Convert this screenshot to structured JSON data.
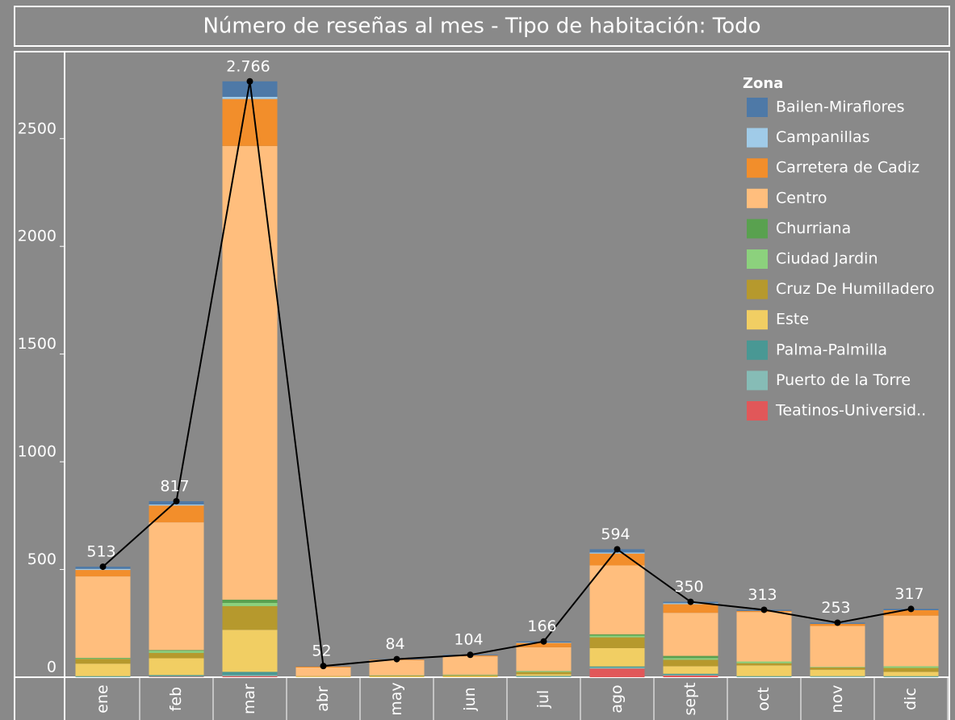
{
  "chart_data": {
    "type": "bar",
    "stacked": true,
    "title": "Número de reseñas al mes - Tipo de habitación: Todo",
    "categories": [
      "ene",
      "feb",
      "mar",
      "abr",
      "may",
      "jun",
      "jul",
      "ago",
      "sept",
      "oct",
      "nov",
      "dic"
    ],
    "legend_title": "Zona",
    "series": [
      {
        "name": "Bailen-Miraflores",
        "color": "#4e79a7",
        "values": [
          10,
          15,
          72,
          2,
          2,
          3,
          5,
          15,
          6,
          5,
          5,
          6
        ]
      },
      {
        "name": "Campanillas",
        "color": "#a0cbe8",
        "values": [
          5,
          5,
          10,
          0,
          0,
          0,
          2,
          5,
          5,
          0,
          0,
          0
        ]
      },
      {
        "name": "Carretera de Cadiz",
        "color": "#f28e2b",
        "values": [
          30,
          78,
          218,
          5,
          3,
          4,
          20,
          55,
          40,
          5,
          10,
          25
        ]
      },
      {
        "name": "Centro",
        "color": "#ffbe7d",
        "values": [
          378,
          593,
          2106,
          40,
          70,
          85,
          110,
          320,
          200,
          230,
          190,
          235
        ]
      },
      {
        "name": "Churriana",
        "color": "#59a14f",
        "values": [
          2,
          3,
          15,
          0,
          0,
          0,
          0,
          6,
          10,
          0,
          0,
          0
        ]
      },
      {
        "name": "Ciudad Jardin",
        "color": "#8cd17d",
        "values": [
          3,
          10,
          15,
          0,
          2,
          3,
          5,
          8,
          8,
          8,
          3,
          8
        ]
      },
      {
        "name": "Cruz De Humilladero",
        "color": "#b6992d",
        "values": [
          22,
          25,
          110,
          2,
          3,
          4,
          10,
          50,
          30,
          10,
          10,
          18
        ]
      },
      {
        "name": "Este",
        "color": "#f1ce63",
        "values": [
          58,
          78,
          195,
          3,
          4,
          5,
          8,
          85,
          35,
          50,
          30,
          20
        ]
      },
      {
        "name": "Palma-Palmilla",
        "color": "#499894",
        "values": [
          3,
          5,
          15,
          0,
          0,
          0,
          3,
          5,
          5,
          3,
          2,
          3
        ]
      },
      {
        "name": "Puerto de la Torre",
        "color": "#86bcb6",
        "values": [
          2,
          3,
          5,
          0,
          0,
          0,
          3,
          5,
          3,
          2,
          3,
          2
        ]
      },
      {
        "name": "Teatinos-Universid..",
        "color": "#e15759",
        "values": [
          0,
          2,
          5,
          0,
          0,
          0,
          0,
          40,
          8,
          0,
          0,
          0
        ]
      }
    ],
    "totals": {
      "color": "#000000",
      "values": [
        513,
        817,
        2766,
        52,
        84,
        104,
        166,
        594,
        350,
        313,
        253,
        317
      ],
      "value_labels": [
        "513",
        "817",
        "2.766",
        "52",
        "84",
        "104",
        "166",
        "594",
        "350",
        "313",
        "253",
        "317"
      ]
    },
    "ylim": [
      0,
      2900
    ],
    "yticks": [
      0,
      500,
      1000,
      1500,
      2000,
      2500
    ]
  }
}
